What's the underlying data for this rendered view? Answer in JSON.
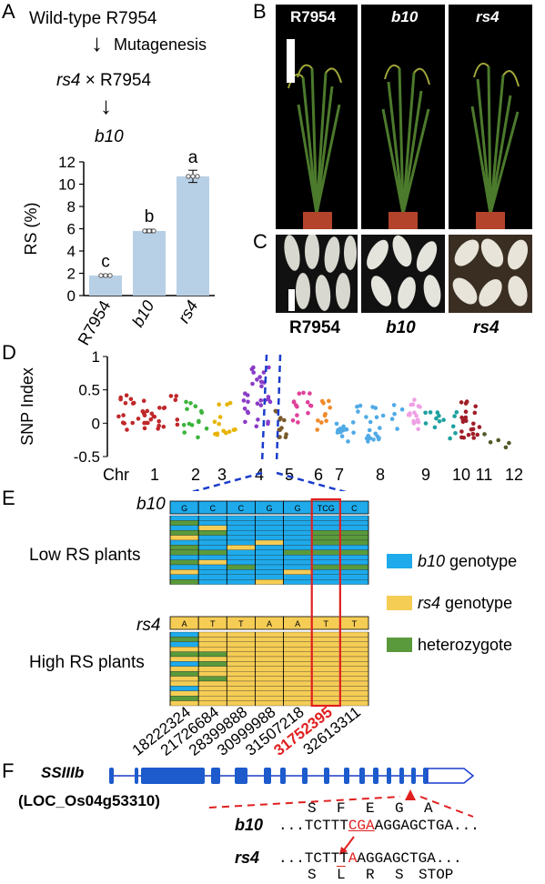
{
  "panels": {
    "A": "A",
    "B": "B",
    "C": "C",
    "D": "D",
    "E": "E",
    "F": "F"
  },
  "panel_a": {
    "line1": "Wild-type R7954",
    "mutagenesis": "Mutagenesis",
    "cross_left": "rs4",
    "cross_right": "× R7954",
    "result": "b10",
    "chart_data": {
      "type": "bar",
      "categories": [
        "R7954",
        "b10",
        "rs4"
      ],
      "values": [
        1.8,
        5.8,
        10.7
      ],
      "errors": [
        0.1,
        0.15,
        0.55
      ],
      "significance": [
        "c",
        "b",
        "a"
      ],
      "ylabel": "RS (%)",
      "ylim": [
        0,
        12
      ],
      "yticks": [
        0,
        2,
        4,
        6,
        8,
        10,
        12
      ],
      "bar_color": "#b8d0e6"
    }
  },
  "panel_b": {
    "labels": [
      "R7954",
      "b10",
      "rs4"
    ]
  },
  "panel_c": {
    "labels": [
      "R7954",
      "b10",
      "rs4"
    ]
  },
  "panel_d": {
    "chart_data": {
      "type": "scatter",
      "ylabel": "SNP Index",
      "ylim": [
        -0.5,
        1
      ],
      "yticks": [
        "1",
        "0.5",
        "0",
        "-0.5"
      ],
      "x_label_prefix": "Chr",
      "chromosomes": [
        "1",
        "2",
        "3",
        "4",
        "5",
        "6",
        "7",
        "8",
        "9",
        "10",
        "11",
        "12"
      ],
      "colors": [
        "#c0282a",
        "#3cb43c",
        "#e6b400",
        "#8a3cc8",
        "#7a5a2a",
        "#e0409a",
        "#f08a28",
        "#50aae6",
        "#f0a0e6",
        "#1ea0a0",
        "#a01e28",
        "#505a28"
      ]
    }
  },
  "panel_e": {
    "b10_label": "b10",
    "rs4_label": "rs4",
    "b10_bases": [
      "G",
      "C",
      "C",
      "G",
      "G",
      "TCG",
      "C"
    ],
    "rs4_bases": [
      "A",
      "T",
      "T",
      "A",
      "A",
      "T",
      "T"
    ],
    "low_label": "Low RS plants",
    "high_label": "High RS plants",
    "positions": [
      "18222324",
      "21726684",
      "28399888",
      "30999988",
      "31507218",
      "31752395",
      "32613311"
    ],
    "highlight_position": "31752395",
    "legend": [
      {
        "label_italic": "b10",
        "label": " genotype",
        "color": "#1eaaeb"
      },
      {
        "label_italic": "rs4",
        "label": " genotype",
        "color": "#f5cd55"
      },
      {
        "label_italic": "",
        "label": "heterozygote",
        "color": "#5a9a3c"
      }
    ]
  },
  "panel_f": {
    "gene": "SSIIIb",
    "locus": "(LOC_Os04g53310)",
    "b10_label": "b10",
    "rs4_label": "rs4",
    "b10_seq_pre": "...TCTTT",
    "b10_seq_mut": "CGA",
    "b10_seq_post": "AGGAGCTGA...",
    "rs4_seq_pre": "...TCTTT",
    "rs4_seq_mut": "A",
    "rs4_seq_post": "AGGAGCTGA...",
    "aa_top": [
      "S",
      "F",
      "E",
      "G",
      "A"
    ],
    "aa_bottom": [
      "S",
      "L",
      "R",
      "S",
      "STOP"
    ]
  }
}
